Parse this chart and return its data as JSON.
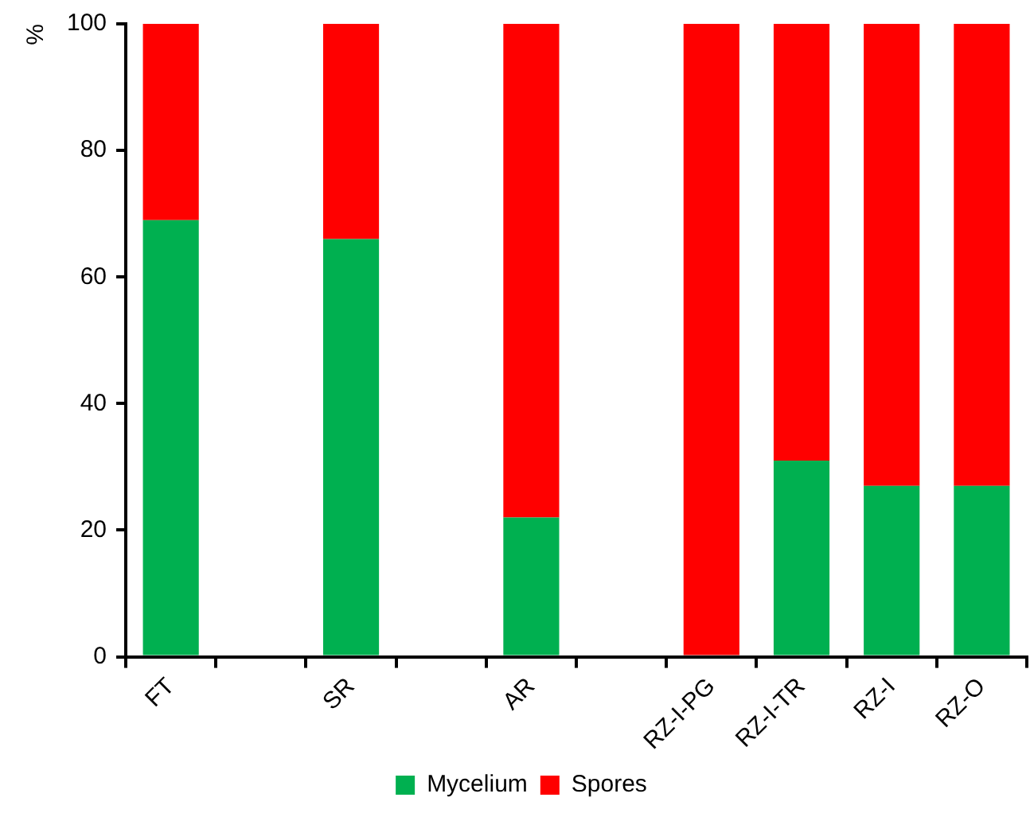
{
  "chart_data": {
    "type": "bar",
    "stacked": true,
    "ylabel": "%",
    "categories": [
      "FT",
      null,
      "SR",
      null,
      "AR",
      null,
      "RZ-I-PG",
      "RZ-I-TR",
      "RZ-I",
      "RZ-O"
    ],
    "series": [
      {
        "name": "Mycelium",
        "color": "#00b050",
        "values": [
          69,
          null,
          66,
          null,
          22,
          null,
          0,
          31,
          27,
          27
        ]
      },
      {
        "name": "Spores",
        "color": "#ff0000",
        "values": [
          31,
          null,
          34,
          null,
          78,
          null,
          100,
          69,
          73,
          73
        ]
      }
    ],
    "ylim": [
      0,
      100
    ],
    "yticks": [
      0,
      20,
      40,
      60,
      80,
      100
    ],
    "grid": false,
    "legend": "bottom"
  }
}
